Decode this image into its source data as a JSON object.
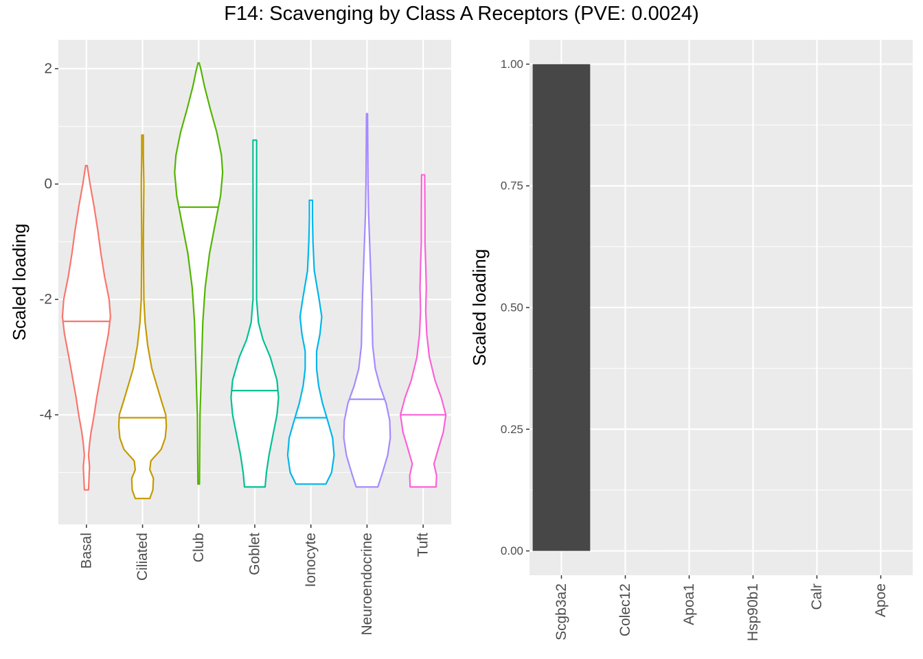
{
  "title": "F14: Scavenging by Class A Receptors (PVE: 0.0024)",
  "chart_data": [
    {
      "type": "violin",
      "ylabel": "Scaled loading",
      "xlabel": "",
      "ylim": [
        -5.9,
        2.5
      ],
      "yticks": [
        2,
        0,
        -2,
        -4
      ],
      "yticklabels": [
        "2",
        "0",
        "-2",
        "-4"
      ],
      "grid": true,
      "categories": [
        "Basal",
        "Ciliated",
        "Club",
        "Goblet",
        "Ionocyte",
        "Neuroendocrine",
        "Tuft"
      ],
      "series": [
        {
          "color": "#F8766D",
          "min": -5.3,
          "max": 0.32,
          "median": -2.38,
          "profile": [
            [
              -5.3,
              0.08
            ],
            [
              -5.1,
              0.1
            ],
            [
              -4.9,
              0.12
            ],
            [
              -4.7,
              0.08
            ],
            [
              -4.5,
              0.12
            ],
            [
              -4.3,
              0.18
            ],
            [
              -4.0,
              0.3
            ],
            [
              -3.7,
              0.4
            ],
            [
              -3.4,
              0.52
            ],
            [
              -3.0,
              0.68
            ],
            [
              -2.6,
              0.85
            ],
            [
              -2.3,
              0.93
            ],
            [
              -2.0,
              0.88
            ],
            [
              -1.6,
              0.7
            ],
            [
              -1.2,
              0.56
            ],
            [
              -0.8,
              0.44
            ],
            [
              -0.4,
              0.3
            ],
            [
              0.0,
              0.14
            ],
            [
              0.32,
              0.03
            ]
          ]
        },
        {
          "color": "#C49A00",
          "min": -5.45,
          "max": 0.85,
          "median": -4.05,
          "profile": [
            [
              -5.45,
              0.28
            ],
            [
              -5.3,
              0.4
            ],
            [
              -5.1,
              0.42
            ],
            [
              -4.95,
              0.28
            ],
            [
              -4.8,
              0.32
            ],
            [
              -4.6,
              0.72
            ],
            [
              -4.4,
              0.88
            ],
            [
              -4.2,
              0.92
            ],
            [
              -4.0,
              0.9
            ],
            [
              -3.8,
              0.76
            ],
            [
              -3.5,
              0.56
            ],
            [
              -3.2,
              0.36
            ],
            [
              -2.8,
              0.2
            ],
            [
              -2.4,
              0.1
            ],
            [
              -2.0,
              0.05
            ],
            [
              -1.0,
              0.03
            ],
            [
              0.0,
              0.05
            ],
            [
              0.5,
              0.03
            ],
            [
              0.85,
              0.03
            ]
          ]
        },
        {
          "color": "#53B400",
          "min": -5.2,
          "max": 2.1,
          "median": -0.4,
          "profile": [
            [
              -5.2,
              0.03
            ],
            [
              -4.6,
              0.04
            ],
            [
              -4.0,
              0.05
            ],
            [
              -3.6,
              0.08
            ],
            [
              -3.0,
              0.12
            ],
            [
              -2.4,
              0.16
            ],
            [
              -1.8,
              0.25
            ],
            [
              -1.2,
              0.42
            ],
            [
              -0.6,
              0.68
            ],
            [
              -0.2,
              0.85
            ],
            [
              0.2,
              0.93
            ],
            [
              0.5,
              0.88
            ],
            [
              0.9,
              0.7
            ],
            [
              1.3,
              0.45
            ],
            [
              1.7,
              0.22
            ],
            [
              2.0,
              0.08
            ],
            [
              2.1,
              0.02
            ]
          ]
        },
        {
          "color": "#00C094",
          "min": -5.25,
          "max": 0.76,
          "median": -3.58,
          "profile": [
            [
              -5.25,
              0.4
            ],
            [
              -5.0,
              0.45
            ],
            [
              -4.7,
              0.55
            ],
            [
              -4.4,
              0.68
            ],
            [
              -4.0,
              0.86
            ],
            [
              -3.7,
              0.92
            ],
            [
              -3.4,
              0.86
            ],
            [
              -3.0,
              0.6
            ],
            [
              -2.7,
              0.32
            ],
            [
              -2.4,
              0.14
            ],
            [
              -2.0,
              0.07
            ],
            [
              -1.0,
              0.06
            ],
            [
              0.0,
              0.07
            ],
            [
              0.76,
              0.07
            ]
          ]
        },
        {
          "color": "#00B6EB",
          "min": -5.2,
          "max": -0.28,
          "median": -4.05,
          "profile": [
            [
              -5.2,
              0.58
            ],
            [
              -5.0,
              0.8
            ],
            [
              -4.7,
              0.9
            ],
            [
              -4.4,
              0.84
            ],
            [
              -4.1,
              0.65
            ],
            [
              -3.8,
              0.45
            ],
            [
              -3.5,
              0.3
            ],
            [
              -3.2,
              0.22
            ],
            [
              -2.9,
              0.22
            ],
            [
              -2.6,
              0.35
            ],
            [
              -2.3,
              0.42
            ],
            [
              -2.0,
              0.32
            ],
            [
              -1.5,
              0.13
            ],
            [
              -1.0,
              0.08
            ],
            [
              -0.6,
              0.06
            ],
            [
              -0.28,
              0.06
            ]
          ]
        },
        {
          "color": "#A58AFF",
          "min": -5.25,
          "max": 1.22,
          "median": -3.73,
          "profile": [
            [
              -5.25,
              0.42
            ],
            [
              -5.0,
              0.6
            ],
            [
              -4.7,
              0.8
            ],
            [
              -4.4,
              0.9
            ],
            [
              -4.1,
              0.88
            ],
            [
              -3.8,
              0.74
            ],
            [
              -3.5,
              0.5
            ],
            [
              -3.2,
              0.32
            ],
            [
              -2.8,
              0.22
            ],
            [
              -2.4,
              0.2
            ],
            [
              -2.0,
              0.18
            ],
            [
              -1.5,
              0.14
            ],
            [
              -1.0,
              0.1
            ],
            [
              -0.5,
              0.06
            ],
            [
              0.0,
              0.04
            ],
            [
              1.22,
              0.02
            ]
          ]
        },
        {
          "color": "#FB61D7",
          "min": -5.25,
          "max": 0.16,
          "median": -4.0,
          "profile": [
            [
              -5.25,
              0.5
            ],
            [
              -5.05,
              0.52
            ],
            [
              -4.85,
              0.42
            ],
            [
              -4.6,
              0.58
            ],
            [
              -4.3,
              0.78
            ],
            [
              -4.0,
              0.88
            ],
            [
              -3.7,
              0.7
            ],
            [
              -3.4,
              0.46
            ],
            [
              -3.0,
              0.24
            ],
            [
              -2.6,
              0.14
            ],
            [
              -2.2,
              0.1
            ],
            [
              -1.8,
              0.12
            ],
            [
              -1.4,
              0.1
            ],
            [
              -1.0,
              0.07
            ],
            [
              -0.5,
              0.07
            ],
            [
              0.16,
              0.06
            ]
          ]
        }
      ]
    },
    {
      "type": "bar",
      "ylabel": "Scaled loading",
      "xlabel": "",
      "ylim": [
        -0.05,
        1.05
      ],
      "yticks": [
        0,
        0.25,
        0.5,
        0.75,
        1.0
      ],
      "yticklabels": [
        "0.00",
        "0.25",
        "0.50",
        "0.75",
        "1.00"
      ],
      "grid": true,
      "categories": [
        "Scgb3a2",
        "Colec12",
        "Apoa1",
        "Hsp90b1",
        "Calr",
        "Apoe"
      ],
      "values": [
        1.0,
        0,
        0,
        0,
        0,
        0
      ],
      "bar_color": "#474747"
    }
  ]
}
